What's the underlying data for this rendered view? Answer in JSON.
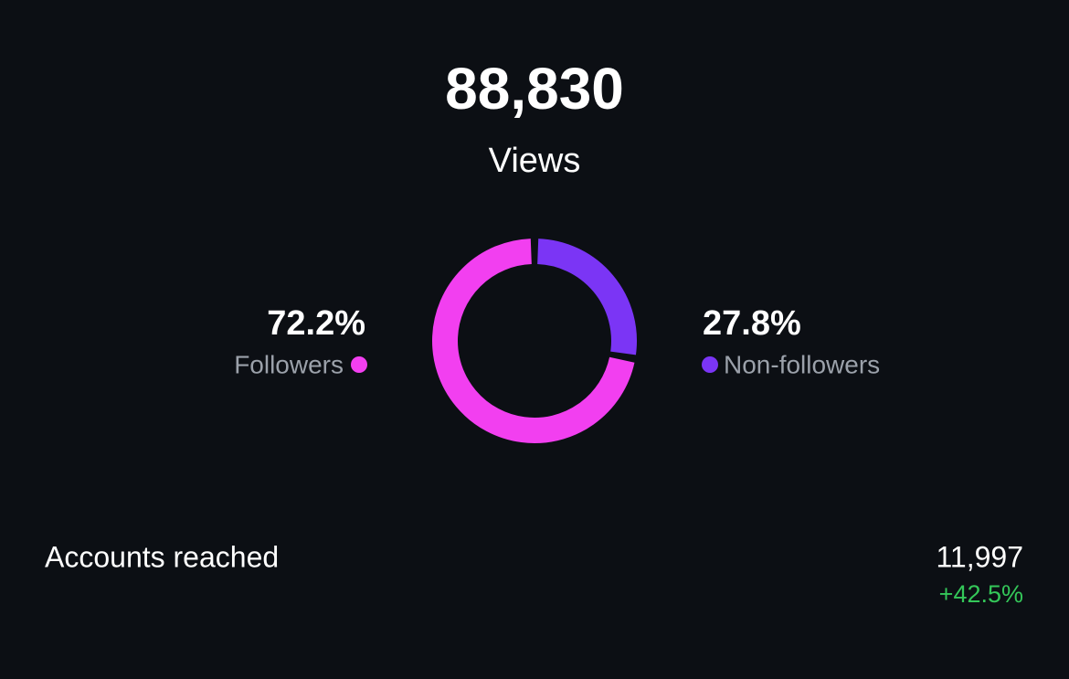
{
  "summary": {
    "value": "88,830",
    "label": "Views"
  },
  "chart_data": {
    "type": "donut",
    "categories": [
      "Followers",
      "Non-followers"
    ],
    "values": [
      72.2,
      27.8
    ],
    "value_labels": [
      "72.2%",
      "27.8%"
    ],
    "colors": [
      "#f23ff0",
      "#7b35f5"
    ]
  },
  "metrics": [
    {
      "label": "Accounts reached",
      "value": "11,997",
      "change": "+42.5%"
    }
  ]
}
